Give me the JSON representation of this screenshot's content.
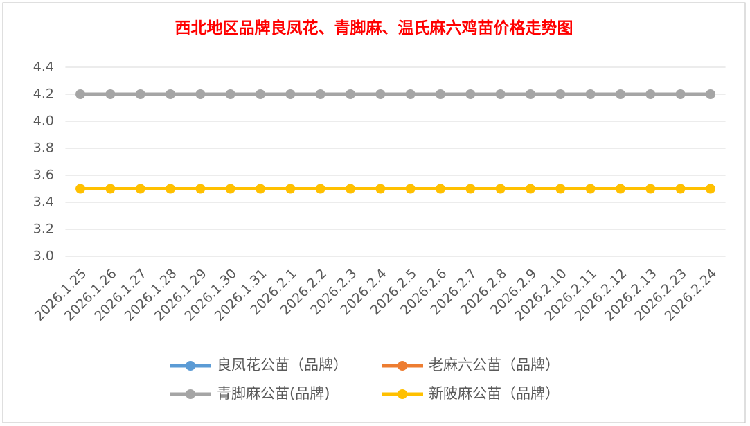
{
  "chart_data": {
    "type": "line",
    "title": "西北地区品牌良凤花、青脚麻、温氏麻六鸡苗价格走势图",
    "categories": [
      "2026.1.25",
      "2026.1.26",
      "2026.1.27",
      "2026.1.28",
      "2026.1.29",
      "2026.1.30",
      "2026.1.31",
      "2026.2.1",
      "2026.2.2",
      "2026.2.3",
      "2026.2.4",
      "2026.2.5",
      "2026.2.6",
      "2026.2.7",
      "2026.2.8",
      "2026.2.9",
      "2026.2.10",
      "2026.2.11",
      "2026.2.12",
      "2026.2.13",
      "2026.2.23",
      "2026.2.24"
    ],
    "series": [
      {
        "name": "良凤花公苗（品牌）",
        "color": "#5b9bd5",
        "values": [
          null,
          null,
          null,
          null,
          null,
          null,
          null,
          null,
          null,
          null,
          null,
          null,
          null,
          null,
          null,
          null,
          null,
          null,
          null,
          null,
          null,
          null
        ]
      },
      {
        "name": "老麻六公苗（品牌）",
        "color": "#ed7d31",
        "values": [
          null,
          null,
          null,
          null,
          null,
          null,
          null,
          null,
          null,
          null,
          null,
          null,
          null,
          null,
          null,
          null,
          null,
          null,
          null,
          null,
          null,
          null
        ]
      },
      {
        "name": "青脚麻公苗(品牌)",
        "color": "#a5a5a5",
        "values": [
          4.2,
          4.2,
          4.2,
          4.2,
          4.2,
          4.2,
          4.2,
          4.2,
          4.2,
          4.2,
          4.2,
          4.2,
          4.2,
          4.2,
          4.2,
          4.2,
          4.2,
          4.2,
          4.2,
          4.2,
          4.2,
          4.2
        ]
      },
      {
        "name": "新陂麻公苗（品牌）",
        "color": "#ffc000",
        "values": [
          3.5,
          3.5,
          3.5,
          3.5,
          3.5,
          3.5,
          3.5,
          3.5,
          3.5,
          3.5,
          3.5,
          3.5,
          3.5,
          3.5,
          3.5,
          3.5,
          3.5,
          3.5,
          3.5,
          3.5,
          3.5,
          3.5
        ]
      }
    ],
    "ylim": [
      3.0,
      4.4
    ],
    "yticks": [
      {
        "value": 3,
        "label": "3.0"
      },
      3.2,
      3.4,
      3.6,
      3.8,
      {
        "value": 4,
        "label": "4.0"
      },
      4.2,
      4.4
    ],
    "grid": true,
    "legend": "bottom"
  }
}
